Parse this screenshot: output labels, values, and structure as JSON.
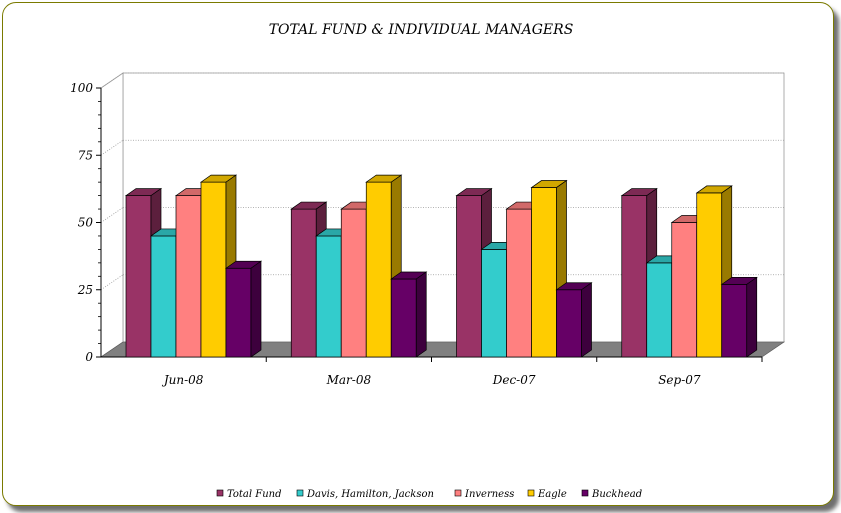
{
  "chart_data": {
    "type": "bar",
    "title": "TOTAL FUND & INDIVIDUAL MANAGERS",
    "xlabel": "",
    "ylabel": "",
    "categories": [
      "Jun-08",
      "Mar-08",
      "Dec-07",
      "Sep-07"
    ],
    "ylim": [
      0,
      100
    ],
    "yticks": [
      "0",
      "25",
      "50",
      "75",
      "100"
    ],
    "grid": true,
    "legend_position": "bottom",
    "series": [
      {
        "name": "Total Fund",
        "color": "#993366",
        "values": [
          60,
          55,
          60,
          60
        ]
      },
      {
        "name": "Davis, Hamilton, Jackson",
        "color": "#33CCCC",
        "values": [
          45,
          45,
          40,
          35
        ]
      },
      {
        "name": "Inverness",
        "color": "#FF8080",
        "values": [
          60,
          55,
          55,
          50
        ]
      },
      {
        "name": "Eagle",
        "color": "#FFCC00",
        "values": [
          65,
          65,
          63,
          61
        ]
      },
      {
        "name": "Buckhead",
        "color": "#660066",
        "values": [
          33,
          29,
          25,
          27
        ]
      }
    ]
  }
}
